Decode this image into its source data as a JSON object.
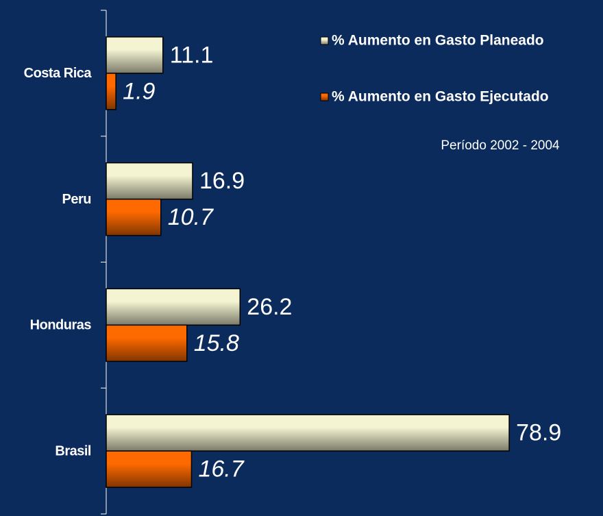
{
  "chart_data": {
    "type": "barh",
    "subtitle": "Período 2002 - 2004",
    "categories": [
      "Costa Rica",
      "Peru",
      "Honduras",
      "Brasil"
    ],
    "series": [
      {
        "name": "% Aumento en Gasto Planeado",
        "color": "#f4f4d2",
        "values": [
          11.1,
          16.9,
          26.2,
          78.9
        ]
      },
      {
        "name": "% Aumento en Gasto Ejecutado",
        "color": "#ff6a00",
        "values": [
          1.9,
          10.7,
          15.8,
          16.7
        ]
      }
    ],
    "xlim": [
      0,
      97
    ],
    "legend": "top-right"
  }
}
